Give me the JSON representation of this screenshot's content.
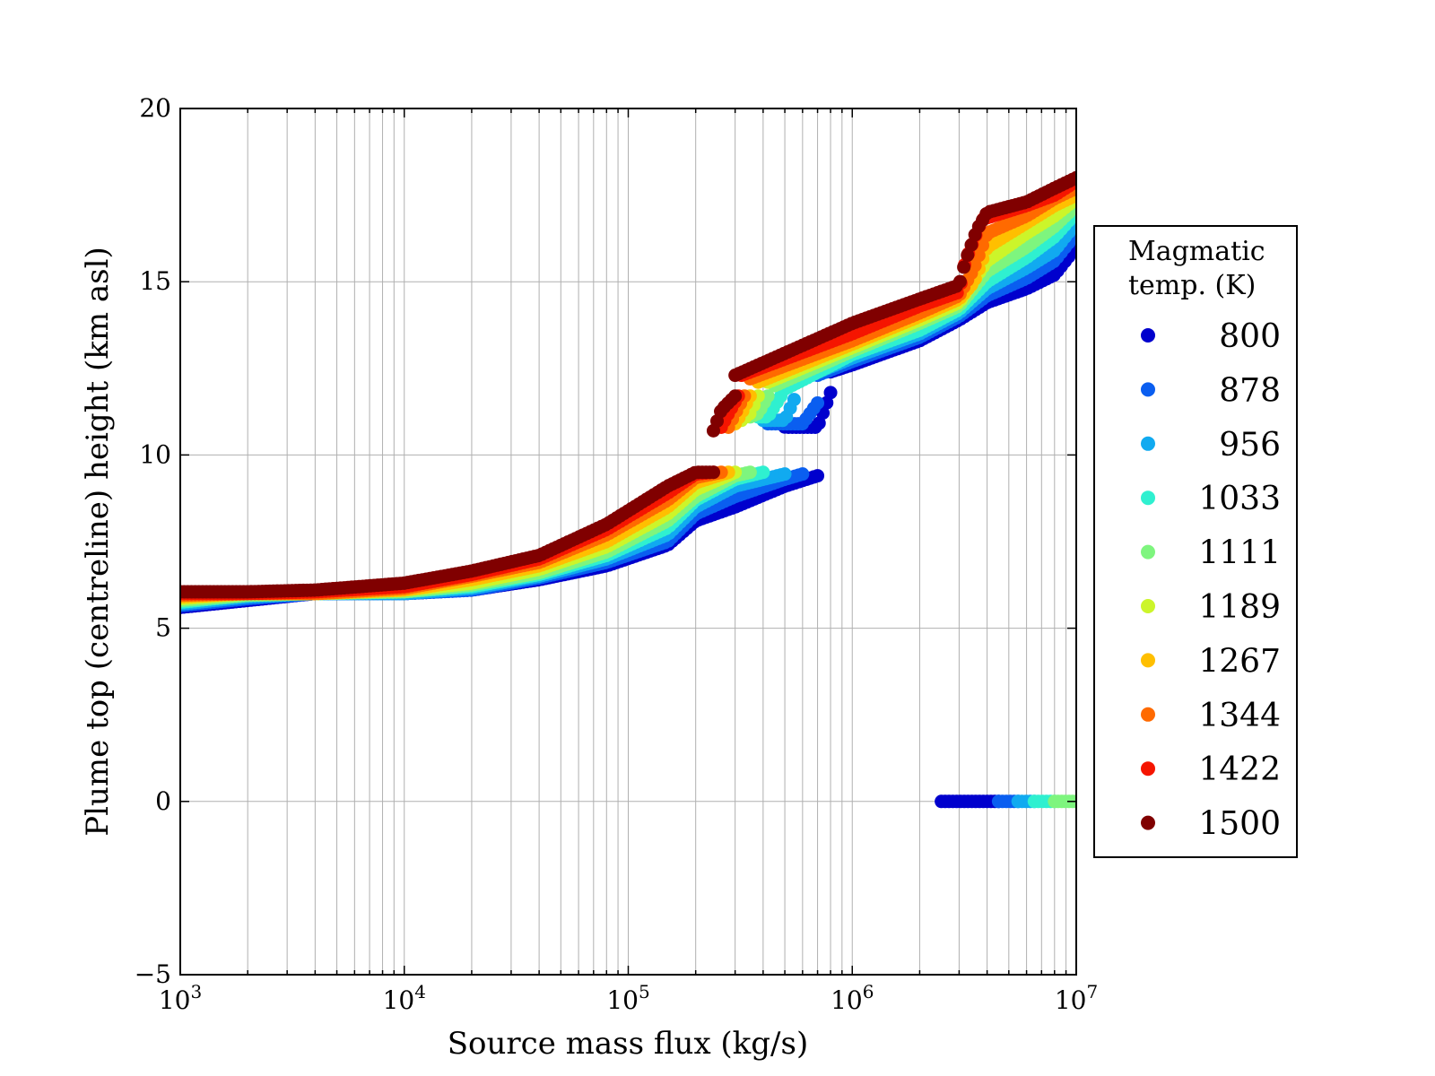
{
  "chart_data": {
    "type": "scatter",
    "xlabel": "Source mass flux (kg/s)",
    "ylabel": "Plume top (centreline) height (km asl)",
    "xscale": "log",
    "xlim": [
      1000,
      10000000
    ],
    "ylim": [
      -5,
      20
    ],
    "x_ticks": [
      {
        "value": 1000,
        "base": "10",
        "exp": "3"
      },
      {
        "value": 10000,
        "base": "10",
        "exp": "4"
      },
      {
        "value": 100000,
        "base": "10",
        "exp": "5"
      },
      {
        "value": 1000000,
        "base": "10",
        "exp": "6"
      },
      {
        "value": 10000000,
        "base": "10",
        "exp": "7"
      }
    ],
    "y_ticks": [
      {
        "value": -5,
        "label": "−5"
      },
      {
        "value": 0,
        "label": "0"
      },
      {
        "value": 5,
        "label": "5"
      },
      {
        "value": 10,
        "label": "10"
      },
      {
        "value": 15,
        "label": "15"
      },
      {
        "value": 20,
        "label": "20"
      }
    ],
    "grid": true,
    "legend": {
      "title_lines": [
        "Magmatic",
        "temp. (K)"
      ],
      "placement": "right-outside",
      "entries": [
        {
          "label": "800",
          "color": "#0000cd"
        },
        {
          "label": "878",
          "color": "#0a5ef0"
        },
        {
          "label": "956",
          "color": "#11aaf0"
        },
        {
          "label": "1033",
          "color": "#2ff0d0"
        },
        {
          "label": "1111",
          "color": "#7ef57e"
        },
        {
          "label": "1189",
          "color": "#ccf52a"
        },
        {
          "label": "1267",
          "color": "#ffbf00"
        },
        {
          "label": "1344",
          "color": "#ff6a00"
        },
        {
          "label": "1422",
          "color": "#f51500"
        },
        {
          "label": "1500",
          "color": "#800000"
        }
      ]
    },
    "series": [
      {
        "name": "800",
        "segments": [
          {
            "x": [
              1000,
              2000,
              4000,
              10000,
              20000,
              40000,
              80000,
              150000,
              200000,
              300000,
              500000,
              700000
            ],
            "y": [
              5.6,
              5.8,
              6.0,
              6.0,
              6.1,
              6.4,
              6.8,
              7.4,
              8.1,
              8.5,
              9.1,
              9.4
            ]
          },
          {
            "x": [
              480000,
              500000,
              600000,
              700000,
              800000
            ],
            "y": [
              11.0,
              10.8,
              10.8,
              10.8,
              11.8
            ]
          },
          {
            "x": [
              800000,
              1000000,
              2000000,
              3000000,
              4000000,
              6000000,
              8000000,
              10000000
            ],
            "y": [
              12.4,
              12.6,
              13.3,
              13.9,
              14.4,
              14.8,
              15.2,
              16.0
            ]
          },
          {
            "x": [
              2500000,
              3000000,
              4000000,
              4500000
            ],
            "y": [
              0,
              0,
              0,
              0
            ]
          }
        ]
      },
      {
        "name": "878",
        "segments": [
          {
            "x": [
              1000,
              2000,
              4000,
              10000,
              20000,
              40000,
              80000,
              150000,
              200000,
              300000,
              500000,
              600000
            ],
            "y": [
              5.65,
              5.85,
              6.0,
              6.0,
              6.1,
              6.45,
              6.9,
              7.5,
              8.3,
              8.8,
              9.3,
              9.45
            ]
          },
          {
            "x": [
              420000,
              500000,
              600000,
              700000
            ],
            "y": [
              10.9,
              10.9,
              10.9,
              11.5
            ]
          },
          {
            "x": [
              700000,
              1000000,
              2000000,
              3000000,
              4000000,
              6000000,
              8000000,
              10000000
            ],
            "y": [
              12.3,
              12.7,
              13.4,
              14.0,
              14.6,
              15.1,
              15.6,
              16.4
            ]
          },
          {
            "x": [
              4500000,
              5000000,
              5500000
            ],
            "y": [
              0,
              0,
              0
            ]
          }
        ]
      },
      {
        "name": "956",
        "segments": [
          {
            "x": [
              1000,
              2000,
              4000,
              10000,
              20000,
              40000,
              80000,
              150000,
              200000,
              300000,
              500000
            ],
            "y": [
              5.7,
              5.9,
              6.0,
              6.0,
              6.15,
              6.5,
              7.0,
              7.7,
              8.5,
              9.1,
              9.45
            ]
          },
          {
            "x": [
              400000,
              450000,
              500000,
              550000
            ],
            "y": [
              11.0,
              11.0,
              11.0,
              11.6
            ]
          },
          {
            "x": [
              550000,
              1000000,
              2000000,
              3000000,
              4000000,
              6000000,
              8000000,
              10000000
            ],
            "y": [
              12.1,
              12.8,
              13.5,
              14.1,
              14.8,
              15.4,
              15.9,
              16.7
            ]
          },
          {
            "x": [
              5500000,
              6000000,
              6500000
            ],
            "y": [
              0,
              0,
              0
            ]
          }
        ]
      },
      {
        "name": "1033",
        "segments": [
          {
            "x": [
              1000,
              2000,
              4000,
              10000,
              20000,
              40000,
              80000,
              150000,
              200000,
              300000,
              400000
            ],
            "y": [
              5.75,
              5.95,
              6.0,
              6.05,
              6.2,
              6.55,
              7.1,
              7.9,
              8.7,
              9.3,
              9.5
            ]
          },
          {
            "x": [
              380000,
              420000,
              480000
            ],
            "y": [
              11.1,
              11.1,
              11.7
            ]
          },
          {
            "x": [
              500000,
              1000000,
              2000000,
              3000000,
              4000000,
              6000000,
              8000000,
              10000000
            ],
            "y": [
              11.9,
              12.9,
              13.6,
              14.2,
              15.0,
              15.7,
              16.3,
              17.0
            ]
          },
          {
            "x": [
              6500000,
              7000000,
              8000000
            ],
            "y": [
              0,
              0,
              0
            ]
          }
        ]
      },
      {
        "name": "1111",
        "segments": [
          {
            "x": [
              1000,
              2000,
              4000,
              10000,
              20000,
              40000,
              80000,
              150000,
              200000,
              300000,
              350000
            ],
            "y": [
              5.8,
              5.95,
              6.0,
              6.05,
              6.25,
              6.6,
              7.2,
              8.1,
              8.8,
              9.4,
              9.5
            ]
          },
          {
            "x": [
              350000,
              380000,
              420000
            ],
            "y": [
              11.1,
              11.2,
              11.7
            ]
          },
          {
            "x": [
              450000,
              1000000,
              2000000,
              3000000,
              4000000,
              6000000,
              8000000,
              10000000
            ],
            "y": [
              12.0,
              13.0,
              13.8,
              14.3,
              15.3,
              16.0,
              16.6,
              17.2
            ]
          },
          {
            "x": [
              8000000,
              9000000,
              10000000
            ],
            "y": [
              0,
              0,
              0
            ]
          }
        ]
      },
      {
        "name": "1189",
        "segments": [
          {
            "x": [
              1000,
              2000,
              4000,
              10000,
              20000,
              40000,
              80000,
              150000,
              200000,
              300000
            ],
            "y": [
              5.85,
              6.0,
              6.0,
              6.1,
              6.3,
              6.7,
              7.35,
              8.3,
              9.0,
              9.5
            ]
          },
          {
            "x": [
              320000,
              350000,
              380000
            ],
            "y": [
              11.0,
              11.2,
              11.7
            ]
          },
          {
            "x": [
              420000,
              1000000,
              2000000,
              3000000,
              4000000,
              6000000,
              8000000,
              10000000
            ],
            "y": [
              12.1,
              13.1,
              13.9,
              14.4,
              15.6,
              16.4,
              16.9,
              17.4
            ]
          }
        ]
      },
      {
        "name": "1267",
        "segments": [
          {
            "x": [
              1000,
              2000,
              4000,
              10000,
              20000,
              40000,
              80000,
              150000,
              200000,
              280000
            ],
            "y": [
              5.9,
              6.0,
              6.0,
              6.1,
              6.4,
              6.8,
              7.5,
              8.5,
              9.2,
              9.5
            ]
          },
          {
            "x": [
              300000,
              320000,
              350000
            ],
            "y": [
              10.9,
              11.2,
              11.7
            ]
          },
          {
            "x": [
              380000,
              1000000,
              2000000,
              3000000,
              3500000,
              4000000,
              6000000,
              8000000,
              10000000
            ],
            "y": [
              12.1,
              13.2,
              14.0,
              14.5,
              15.0,
              16.0,
              16.7,
              17.2,
              17.5
            ]
          }
        ]
      },
      {
        "name": "1344",
        "segments": [
          {
            "x": [
              1000,
              2000,
              4000,
              10000,
              20000,
              40000,
              80000,
              150000,
              200000,
              260000
            ],
            "y": [
              5.95,
              6.0,
              6.0,
              6.15,
              6.5,
              6.9,
              7.7,
              8.7,
              9.35,
              9.5
            ]
          },
          {
            "x": [
              280000,
              300000,
              330000
            ],
            "y": [
              10.8,
              11.2,
              11.7
            ]
          },
          {
            "x": [
              350000,
              1000000,
              2000000,
              3000000,
              3500000,
              4000000,
              6000000,
              8000000,
              10000000
            ],
            "y": [
              12.2,
              13.3,
              14.1,
              14.6,
              15.4,
              16.4,
              16.9,
              17.4,
              17.7
            ]
          }
        ]
      },
      {
        "name": "1422",
        "segments": [
          {
            "x": [
              1000,
              2000,
              4000,
              10000,
              20000,
              40000,
              80000,
              150000,
              200000,
              240000
            ],
            "y": [
              6.0,
              6.0,
              6.05,
              6.2,
              6.55,
              7.0,
              7.85,
              8.9,
              9.45,
              9.5
            ]
          },
          {
            "x": [
              260000,
              280000,
              310000
            ],
            "y": [
              10.8,
              11.2,
              11.7
            ]
          },
          {
            "x": [
              320000,
              1000000,
              2000000,
              3000000,
              3200000,
              3800000,
              6000000,
              8000000,
              10000000
            ],
            "y": [
              12.3,
              13.5,
              14.3,
              14.7,
              15.6,
              16.8,
              17.2,
              17.5,
              17.9
            ]
          }
        ]
      },
      {
        "name": "1500",
        "segments": [
          {
            "x": [
              1000,
              2000,
              4000,
              10000,
              20000,
              40000,
              80000,
              150000,
              200000,
              240000
            ],
            "y": [
              6.05,
              6.05,
              6.1,
              6.3,
              6.65,
              7.1,
              8.0,
              9.1,
              9.5,
              9.5
            ]
          },
          {
            "x": [
              240000,
              260000,
              300000
            ],
            "y": [
              10.7,
              11.3,
              11.7
            ]
          },
          {
            "x": [
              300000,
              1000000,
              2000000,
              3000000,
              3200000,
              3600000,
              4000000,
              6000000,
              8000000,
              10000000
            ],
            "y": [
              12.3,
              13.8,
              14.5,
              14.9,
              15.6,
              16.5,
              17.0,
              17.3,
              17.7,
              18.0
            ]
          }
        ]
      }
    ]
  }
}
